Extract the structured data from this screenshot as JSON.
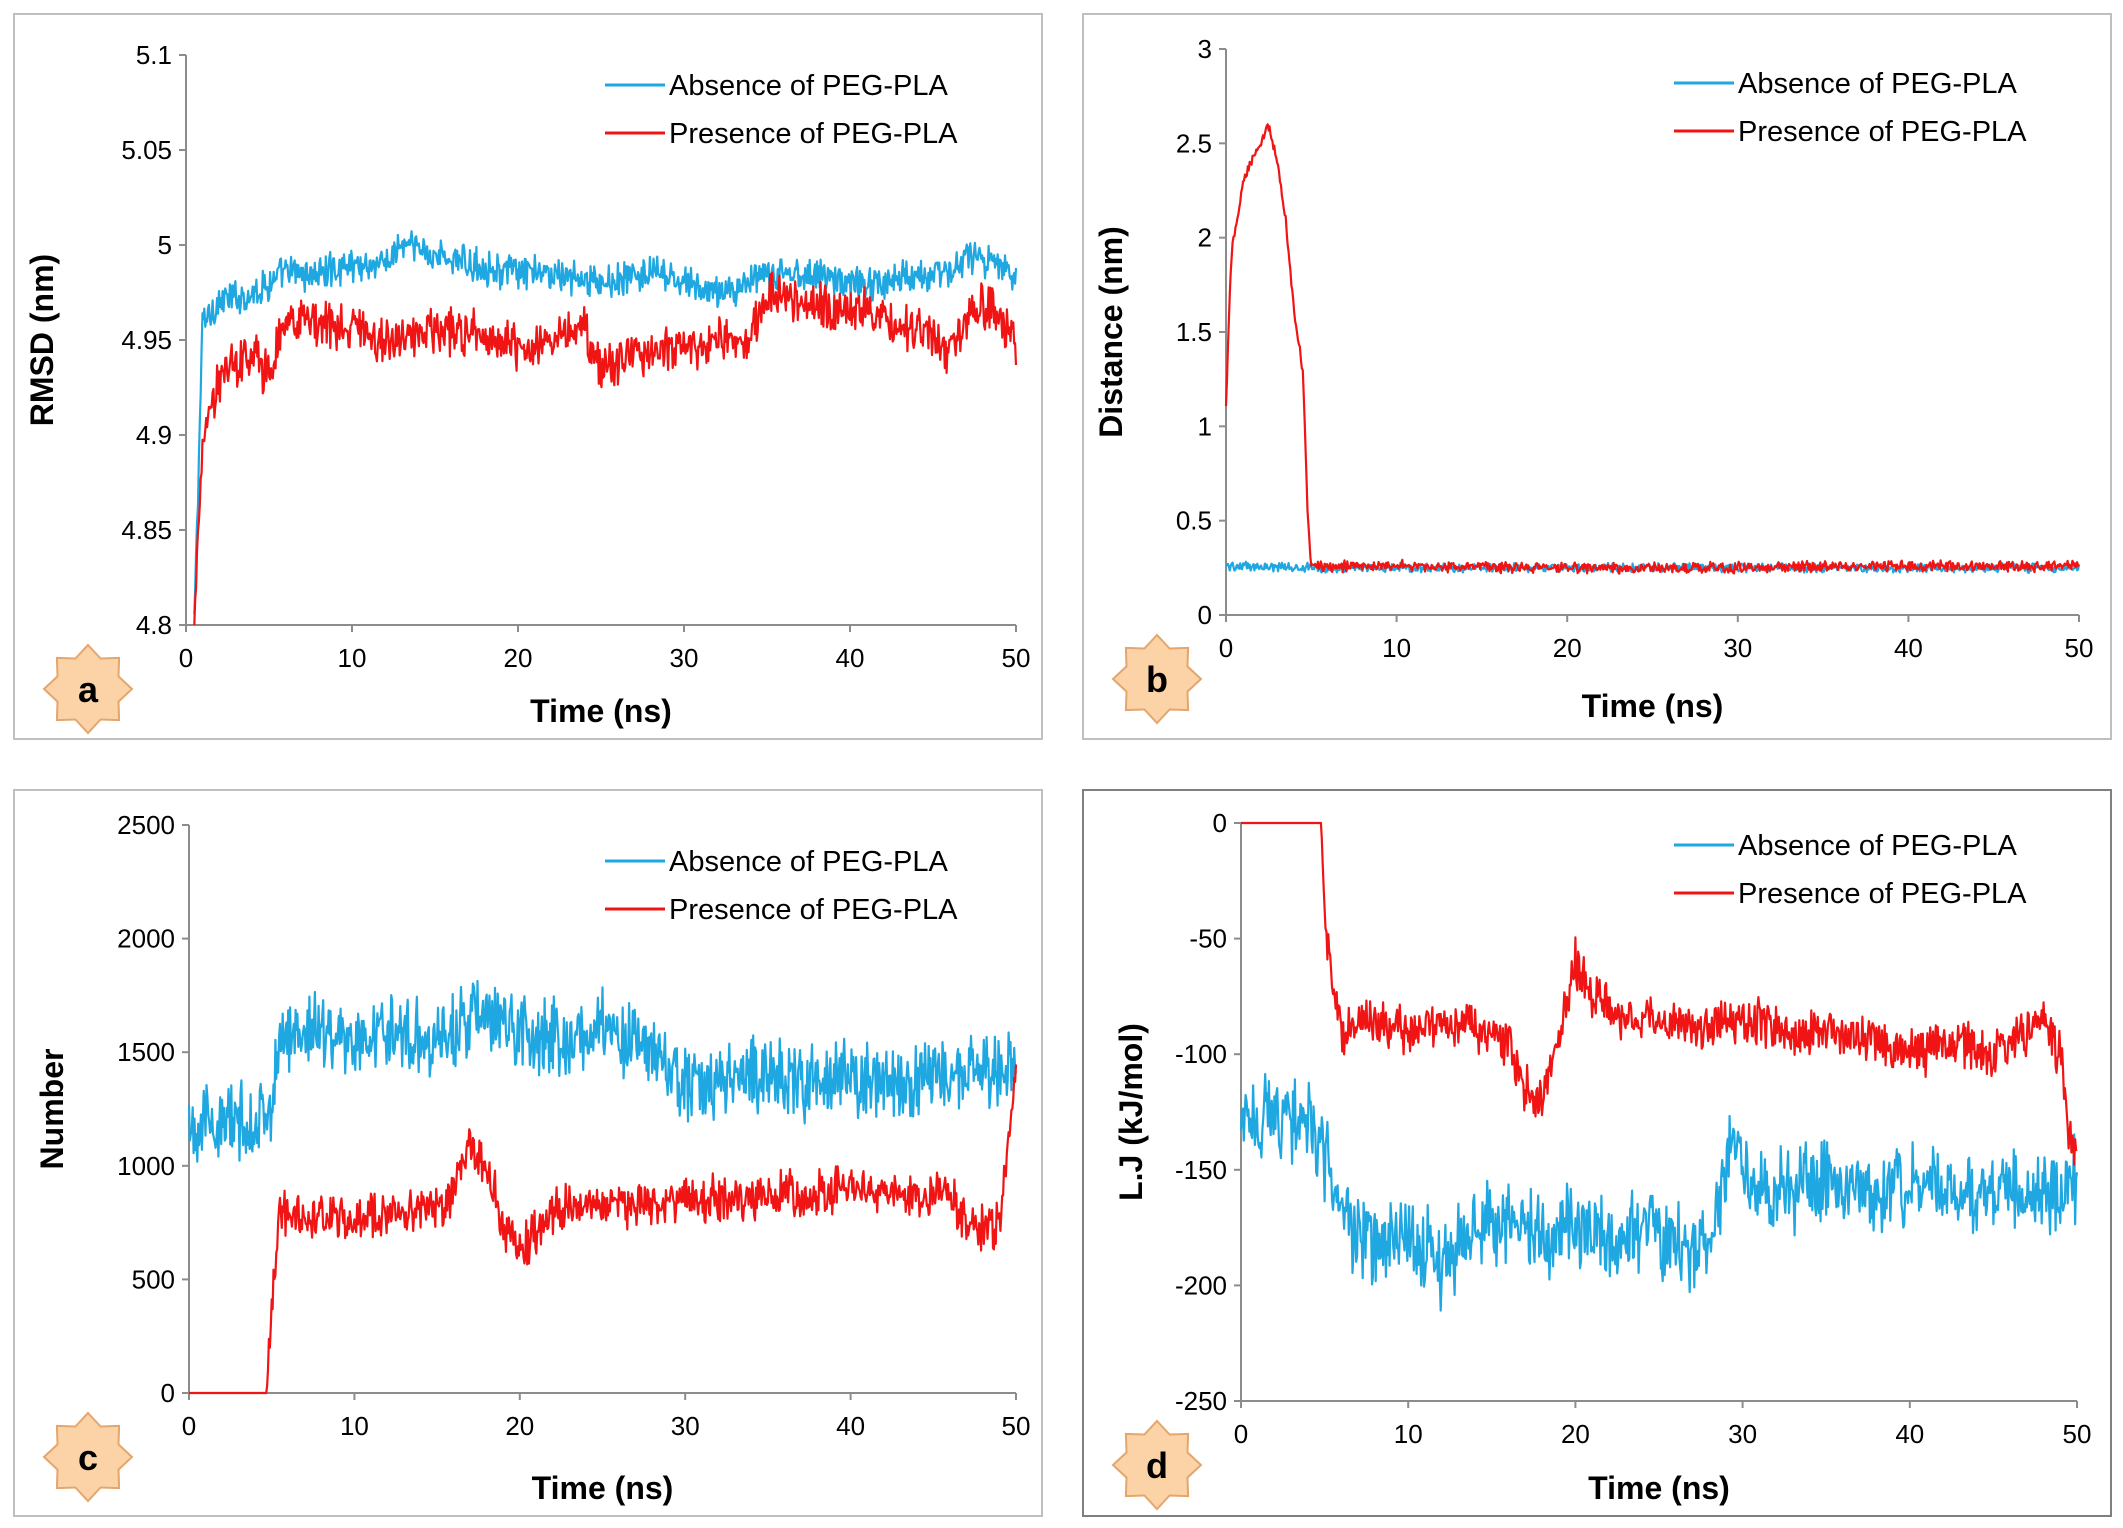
{
  "colors": {
    "absence": "#1ea7e1",
    "presence": "#f01414",
    "badge_fill": "#fbd3a6",
    "badge_stroke": "#e3a66c"
  },
  "panels": [
    {
      "id": "a",
      "badge": "a",
      "chart_data": {
        "type": "line",
        "xlabel": "Time (ns)",
        "ylabel": "RMSD (nm)",
        "xlim": [
          0,
          50
        ],
        "ylim": [
          4.8,
          5.1
        ],
        "xticks": [
          "0",
          "10",
          "20",
          "30",
          "40",
          "50"
        ],
        "yticks": [
          "4.8",
          "4.85",
          "4.9",
          "4.95",
          "5",
          "5.05",
          "5.1"
        ],
        "legend": "top-right",
        "series": [
          {
            "name": "Absence of PEG-PLA",
            "color": "#1ea7e1",
            "x": [
              0.5,
              1,
              2,
              4,
              6,
              8,
              10,
              12,
              13,
              15,
              17,
              20,
              22,
              25,
              28,
              30,
              32,
              34,
              36,
              38,
              40,
              42,
              44,
              46,
              47,
              50
            ],
            "y": [
              4.8,
              4.96,
              4.97,
              4.975,
              4.985,
              4.985,
              4.99,
              4.99,
              5.0,
              4.995,
              4.99,
              4.985,
              4.985,
              4.98,
              4.985,
              4.98,
              4.975,
              4.98,
              4.985,
              4.985,
              4.98,
              4.98,
              4.985,
              4.985,
              4.995,
              4.985
            ]
          },
          {
            "name": "Presence of PEG-PLA",
            "color": "#f01414",
            "x": [
              0.5,
              1,
              2,
              4,
              5,
              6,
              8,
              10,
              12,
              15,
              18,
              20,
              22,
              24,
              25,
              26,
              28,
              30,
              32,
              34,
              35,
              37,
              40,
              43,
              46,
              48,
              50
            ],
            "y": [
              4.8,
              4.9,
              4.93,
              4.945,
              4.93,
              4.96,
              4.96,
              4.955,
              4.95,
              4.955,
              4.955,
              4.945,
              4.95,
              4.955,
              4.935,
              4.94,
              4.945,
              4.945,
              4.95,
              4.95,
              4.975,
              4.97,
              4.965,
              4.96,
              4.945,
              4.97,
              4.95
            ]
          }
        ]
      }
    },
    {
      "id": "b",
      "badge": "b",
      "chart_data": {
        "type": "line",
        "xlabel": "Time (ns)",
        "ylabel": "Distance (nm)",
        "xlim": [
          0,
          50
        ],
        "ylim": [
          0,
          3
        ],
        "xticks": [
          "0",
          "10",
          "20",
          "30",
          "40",
          "50"
        ],
        "yticks": [
          "0",
          "0.5",
          "1",
          "1.5",
          "2",
          "2.5",
          "3"
        ],
        "legend": "top-right",
        "series": [
          {
            "name": "Absence of PEG-PLA",
            "color": "#1ea7e1",
            "x": [
              0,
              5,
              10,
              20,
              30,
              40,
              50
            ],
            "y": [
              0.26,
              0.25,
              0.25,
              0.25,
              0.25,
              0.25,
              0.25
            ]
          },
          {
            "name": "Presence of PEG-PLA",
            "color": "#f01414",
            "x": [
              0,
              0.3,
              1,
              2,
              2.5,
              3,
              3.5,
              4,
              4.5,
              4.8,
              5,
              10,
              20,
              30,
              40,
              50
            ],
            "y": [
              1.1,
              1.9,
              2.3,
              2.5,
              2.6,
              2.4,
              2.1,
              1.6,
              1.3,
              0.5,
              0.26,
              0.26,
              0.25,
              0.25,
              0.26,
              0.26
            ]
          }
        ]
      }
    },
    {
      "id": "c",
      "badge": "c",
      "chart_data": {
        "type": "line",
        "xlabel": "Time (ns)",
        "ylabel": "Number",
        "xlim": [
          0,
          50
        ],
        "ylim": [
          0,
          2500
        ],
        "xticks": [
          "0",
          "10",
          "20",
          "30",
          "40",
          "50"
        ],
        "yticks": [
          "0",
          "500",
          "1000",
          "1500",
          "2000",
          "2500"
        ],
        "legend": "top-right",
        "series": [
          {
            "name": "Absence of PEG-PLA",
            "color": "#1ea7e1",
            "x": [
              0,
              2,
              4,
              5,
              5.5,
              6,
              8,
              10,
              12,
              15,
              17,
              20,
              23,
              25,
              28,
              30,
              33,
              35,
              38,
              40,
              43,
              45,
              48,
              50
            ],
            "y": [
              1200,
              1180,
              1200,
              1250,
              1500,
              1600,
              1600,
              1550,
              1600,
              1550,
              1650,
              1600,
              1550,
              1600,
              1500,
              1350,
              1400,
              1400,
              1350,
              1400,
              1350,
              1400,
              1400,
              1450
            ]
          },
          {
            "name": "Presence of PEG-PLA",
            "color": "#f01414",
            "x": [
              0,
              4.7,
              5,
              5.5,
              8,
              10,
              12,
              15,
              16,
              17,
              18,
              19,
              20,
              22,
              25,
              28,
              30,
              32,
              35,
              38,
              40,
              43,
              46,
              47,
              49,
              50
            ],
            "y": [
              0,
              0,
              400,
              800,
              780,
              760,
              780,
              800,
              900,
              1100,
              1000,
              750,
              620,
              800,
              830,
              820,
              850,
              850,
              880,
              880,
              900,
              880,
              880,
              760,
              720,
              1450
            ]
          }
        ]
      }
    },
    {
      "id": "d",
      "badge": "d",
      "chart_data": {
        "type": "line",
        "xlabel": "Time (ns)",
        "ylabel": "L.J (kJ/mol)",
        "xlim": [
          0,
          50
        ],
        "ylim": [
          -250,
          0
        ],
        "xticks": [
          "0",
          "10",
          "20",
          "30",
          "40",
          "50"
        ],
        "yticks": [
          "0",
          "-50",
          "-100",
          "-150",
          "-200",
          "-250"
        ],
        "legend": "top-right",
        "series": [
          {
            "name": "Absence of PEG-PLA",
            "color": "#1ea7e1",
            "x": [
              0,
              2,
              4,
              5,
              6,
              8,
              10,
              12,
              14,
              16,
              18,
              20,
              22,
              24,
              26,
              28,
              29.5,
              30,
              32,
              35,
              38,
              40,
              43,
              46,
              48,
              50
            ],
            "y": [
              -130,
              -125,
              -130,
              -145,
              -170,
              -185,
              -180,
              -190,
              -175,
              -170,
              -180,
              -175,
              -180,
              -175,
              -180,
              -185,
              -130,
              -150,
              -160,
              -155,
              -160,
              -155,
              -160,
              -160,
              -160,
              -155
            ]
          },
          {
            "name": "Presence of PEG-PLA",
            "color": "#f01414",
            "x": [
              0,
              4.8,
              5,
              5.5,
              6,
              8,
              10,
              12,
              14,
              16,
              17,
              18,
              19,
              20,
              21,
              23,
              25,
              28,
              30,
              33,
              35,
              38,
              40,
              43,
              45,
              47,
              48,
              49,
              49.5,
              50
            ],
            "y": [
              0,
              0,
              -40,
              -70,
              -90,
              -85,
              -90,
              -85,
              -90,
              -95,
              -115,
              -120,
              -90,
              -60,
              -75,
              -85,
              -85,
              -90,
              -85,
              -90,
              -90,
              -95,
              -100,
              -95,
              -100,
              -90,
              -85,
              -100,
              -130,
              -150
            ]
          }
        ]
      }
    }
  ]
}
